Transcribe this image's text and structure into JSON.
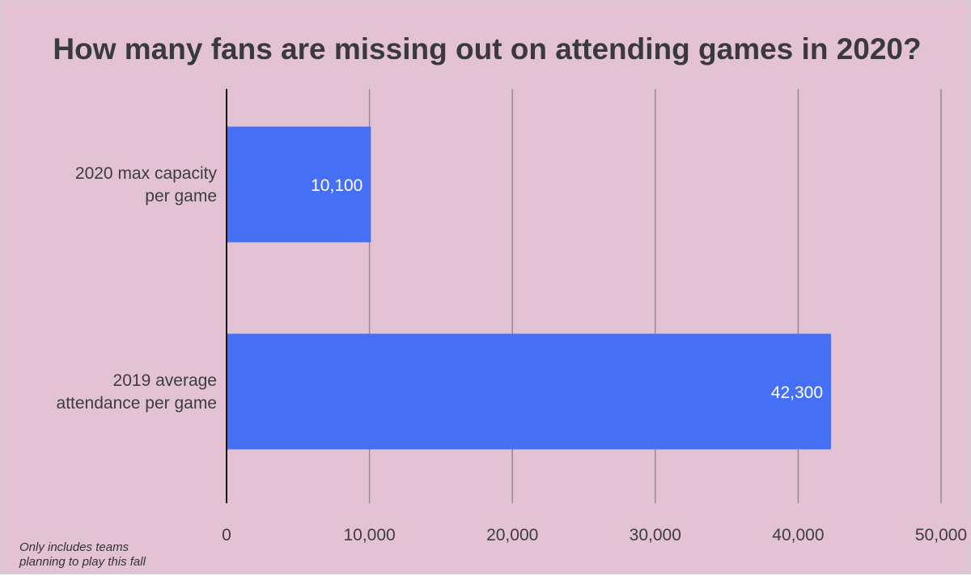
{
  "colors": {
    "background": "#e3c3d3",
    "bar": "#4570f5",
    "grid": "#9a8a93",
    "axis": "#111111"
  },
  "footnote": {
    "line1": "Only includes teams",
    "line2": "planning to play this fall"
  },
  "chart_data": {
    "type": "bar",
    "orientation": "horizontal",
    "title": "How many fans are missing out on attending games in 2020?",
    "categories": [
      [
        "2020 max capacity",
        "per game"
      ],
      [
        "2019 average",
        "attendance per game"
      ]
    ],
    "values": [
      10100,
      42300
    ],
    "data_labels": [
      "10,100",
      "42,300"
    ],
    "xlim": [
      0,
      50000
    ],
    "xticks": [
      0,
      10000,
      20000,
      30000,
      40000,
      50000
    ],
    "xtick_labels": [
      "0",
      "10,000",
      "20,000",
      "30,000",
      "40,000",
      "50,000"
    ],
    "grid": true,
    "legend": "none"
  }
}
